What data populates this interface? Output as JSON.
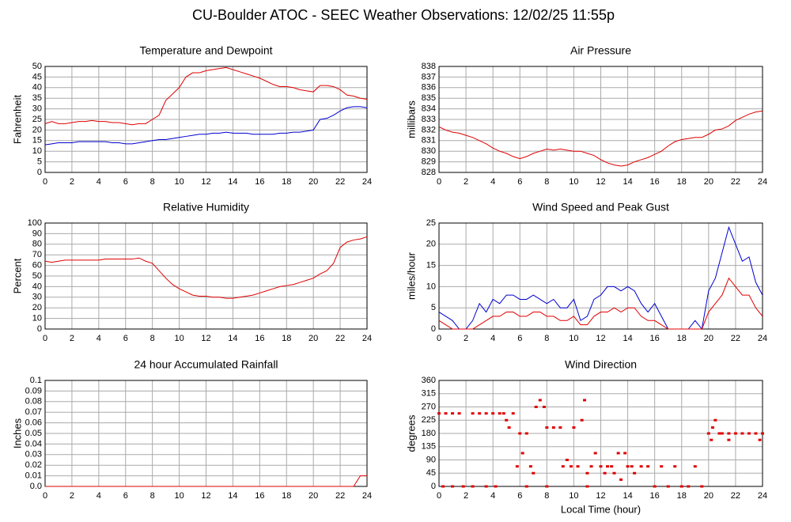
{
  "title": "CU-Boulder ATOC - SEEC Weather Observations: 12/02/25 11:55p",
  "chart_data": [
    {
      "type": "line",
      "title": "Temperature and Dewpoint",
      "ylabel": "Fahrenheit",
      "x": [
        0,
        0.5,
        1,
        1.5,
        2,
        2.5,
        3,
        3.5,
        4,
        4.5,
        5,
        5.5,
        6,
        6.5,
        7,
        7.5,
        8,
        8.5,
        9,
        9.5,
        10,
        10.5,
        11,
        11.5,
        12,
        12.5,
        13,
        13.5,
        14,
        14.5,
        15,
        15.5,
        16,
        16.5,
        17,
        17.5,
        18,
        18.5,
        19,
        19.5,
        20,
        20.5,
        21,
        21.5,
        22,
        22.5,
        23,
        23.5,
        24
      ],
      "series": [
        {
          "color": "#e00000",
          "values": [
            23,
            24,
            23,
            23,
            23.5,
            24,
            24,
            24.5,
            24,
            24,
            23.5,
            23.5,
            23,
            22.5,
            23,
            23,
            25,
            27,
            34,
            37,
            40,
            45,
            47,
            47,
            48,
            48.5,
            49,
            49.5,
            48.5,
            47.5,
            46.5,
            45.5,
            44.5,
            43,
            41.5,
            40.5,
            40.5,
            40,
            39,
            38.5,
            38,
            41,
            41,
            40.5,
            39,
            36.5,
            36,
            35,
            34.5
          ]
        },
        {
          "color": "#0000d0",
          "values": [
            13,
            13.5,
            14,
            14,
            14,
            14.5,
            14.5,
            14.5,
            14.5,
            14.5,
            14,
            14,
            13.5,
            13.5,
            14,
            14.5,
            15,
            15.5,
            15.5,
            16,
            16.5,
            17,
            17.5,
            18,
            18,
            18.5,
            18.5,
            19,
            18.5,
            18.5,
            18.5,
            18,
            18,
            18,
            18,
            18.5,
            18.5,
            19,
            19,
            19.5,
            20,
            25,
            25.5,
            27,
            29,
            30.5,
            31,
            31,
            30.5
          ]
        }
      ],
      "xlim": [
        0,
        24
      ],
      "xticks": [
        0,
        2,
        4,
        6,
        8,
        10,
        12,
        14,
        16,
        18,
        20,
        22,
        24
      ],
      "ylim": [
        0,
        50
      ],
      "yticks": [
        0,
        5,
        10,
        15,
        20,
        25,
        30,
        35,
        40,
        45,
        50
      ],
      "grid": true
    },
    {
      "type": "line",
      "title": "Air Pressure",
      "ylabel": "millibars",
      "x": [
        0,
        0.5,
        1,
        1.5,
        2,
        2.5,
        3,
        3.5,
        4,
        4.5,
        5,
        5.5,
        6,
        6.5,
        7,
        7.5,
        8,
        8.5,
        9,
        9.5,
        10,
        10.5,
        11,
        11.5,
        12,
        12.5,
        13,
        13.5,
        14,
        14.5,
        15,
        15.5,
        16,
        16.5,
        17,
        17.5,
        18,
        18.5,
        19,
        19.5,
        20,
        20.5,
        21,
        21.5,
        22,
        22.5,
        23,
        23.5,
        24
      ],
      "series": [
        {
          "color": "#e00000",
          "values": [
            832.3,
            832,
            831.8,
            831.7,
            831.5,
            831.3,
            831,
            830.7,
            830.3,
            830,
            829.8,
            829.5,
            829.3,
            829.5,
            829.8,
            830,
            830.2,
            830.1,
            830.2,
            830.1,
            830,
            830,
            829.8,
            829.6,
            829.2,
            828.9,
            828.7,
            828.6,
            828.7,
            829,
            829.2,
            829.4,
            829.7,
            830,
            830.5,
            830.9,
            831.1,
            831.2,
            831.3,
            831.3,
            831.6,
            832,
            832.1,
            832.4,
            832.9,
            833.2,
            833.5,
            833.7,
            833.8
          ]
        }
      ],
      "xlim": [
        0,
        24
      ],
      "xticks": [
        0,
        2,
        4,
        6,
        8,
        10,
        12,
        14,
        16,
        18,
        20,
        22,
        24
      ],
      "ylim": [
        828,
        838
      ],
      "yticks": [
        828,
        829,
        830,
        831,
        832,
        833,
        834,
        835,
        836,
        837,
        838
      ],
      "grid": true
    },
    {
      "type": "line",
      "title": "Relative Humidity",
      "ylabel": "Percent",
      "x": [
        0,
        0.5,
        1,
        1.5,
        2,
        2.5,
        3,
        3.5,
        4,
        4.5,
        5,
        5.5,
        6,
        6.5,
        7,
        7.5,
        8,
        8.5,
        9,
        9.5,
        10,
        10.5,
        11,
        11.5,
        12,
        12.5,
        13,
        13.5,
        14,
        14.5,
        15,
        15.5,
        16,
        16.5,
        17,
        17.5,
        18,
        18.5,
        19,
        19.5,
        20,
        20.5,
        21,
        21.5,
        22,
        22.5,
        23,
        23.5,
        24
      ],
      "series": [
        {
          "color": "#e00000",
          "values": [
            64,
            63,
            64,
            65,
            65,
            65,
            65,
            65,
            65,
            66,
            66,
            66,
            66,
            66,
            67,
            64,
            62,
            55,
            48,
            42,
            38,
            35,
            32,
            31,
            31,
            30,
            30,
            29,
            29,
            30,
            31,
            32,
            34,
            36,
            38,
            40,
            41,
            42,
            44,
            46,
            48,
            52,
            55,
            62,
            77,
            82,
            84,
            85,
            87
          ]
        }
      ],
      "xlim": [
        0,
        24
      ],
      "xticks": [
        0,
        2,
        4,
        6,
        8,
        10,
        12,
        14,
        16,
        18,
        20,
        22,
        24
      ],
      "ylim": [
        0,
        100
      ],
      "yticks": [
        0,
        10,
        20,
        30,
        40,
        50,
        60,
        70,
        80,
        90,
        100
      ],
      "grid": true
    },
    {
      "type": "line",
      "title": "Wind Speed and Peak Gust",
      "ylabel": "miles/hour",
      "x": [
        0,
        0.5,
        1,
        1.5,
        2,
        2.5,
        3,
        3.5,
        4,
        4.5,
        5,
        5.5,
        6,
        6.5,
        7,
        7.5,
        8,
        8.5,
        9,
        9.5,
        10,
        10.5,
        11,
        11.5,
        12,
        12.5,
        13,
        13.5,
        14,
        14.5,
        15,
        15.5,
        16,
        16.5,
        17,
        17.5,
        18,
        18.5,
        19,
        19.5,
        20,
        20.5,
        21,
        21.5,
        22,
        22.5,
        23,
        23.5,
        24
      ],
      "series": [
        {
          "color": "#0000d0",
          "values": [
            4,
            3,
            2,
            0,
            0,
            2,
            6,
            4,
            7,
            6,
            8,
            8,
            7,
            7,
            8,
            7,
            6,
            7,
            5,
            5,
            7,
            2,
            3,
            7,
            8,
            10,
            10,
            9,
            10,
            9,
            6,
            4,
            6,
            3,
            0,
            0,
            0,
            0,
            2,
            0,
            9,
            12,
            18,
            24,
            20,
            16,
            17,
            11,
            8
          ]
        },
        {
          "color": "#e00000",
          "values": [
            2,
            1,
            0,
            0,
            0,
            0,
            1,
            2,
            3,
            3,
            4,
            4,
            3,
            3,
            4,
            4,
            3,
            3,
            2,
            2,
            3,
            1,
            1,
            3,
            4,
            4,
            5,
            4,
            5,
            5,
            3,
            2,
            2,
            1,
            0,
            0,
            0,
            0,
            0,
            0,
            4,
            6,
            8,
            12,
            10,
            8,
            8,
            5,
            3
          ]
        }
      ],
      "xlim": [
        0,
        24
      ],
      "xticks": [
        0,
        2,
        4,
        6,
        8,
        10,
        12,
        14,
        16,
        18,
        20,
        22,
        24
      ],
      "ylim": [
        0,
        25
      ],
      "yticks": [
        0,
        5,
        10,
        15,
        20,
        25
      ],
      "grid": true
    },
    {
      "type": "line",
      "title": "24 hour Accumulated Rainfall",
      "ylabel": "Inches",
      "x": [
        0,
        0.5,
        1,
        1.5,
        2,
        2.5,
        3,
        3.5,
        4,
        4.5,
        5,
        5.5,
        6,
        6.5,
        7,
        7.5,
        8,
        8.5,
        9,
        9.5,
        10,
        10.5,
        11,
        11.5,
        12,
        12.5,
        13,
        13.5,
        14,
        14.5,
        15,
        15.5,
        16,
        16.5,
        17,
        17.5,
        18,
        18.5,
        19,
        19.5,
        20,
        20.5,
        21,
        21.5,
        22,
        22.5,
        23,
        23.5,
        24
      ],
      "series": [
        {
          "color": "#e00000",
          "values": [
            0,
            0,
            0,
            0,
            0,
            0,
            0,
            0,
            0,
            0,
            0,
            0,
            0,
            0,
            0,
            0,
            0,
            0,
            0,
            0,
            0,
            0,
            0,
            0,
            0,
            0,
            0,
            0,
            0,
            0,
            0,
            0,
            0,
            0,
            0,
            0,
            0,
            0,
            0,
            0,
            0,
            0,
            0,
            0,
            0,
            0,
            0,
            0.01,
            0.01
          ]
        }
      ],
      "xlim": [
        0,
        24
      ],
      "xticks": [
        0,
        2,
        4,
        6,
        8,
        10,
        12,
        14,
        16,
        18,
        20,
        22,
        24
      ],
      "ylim": [
        0,
        0.1
      ],
      "yticks": [
        {
          "value": 0,
          "label": "0.0"
        },
        0.01,
        0.02,
        0.03,
        0.04,
        0.05,
        0.06,
        0.07,
        0.08,
        0.09,
        0.1
      ],
      "grid": true
    },
    {
      "type": "scatter",
      "title": "Wind Direction",
      "ylabel": "degrees",
      "xlabel": "Local Time (hour)",
      "x": [
        0,
        0.5,
        1,
        1.5,
        0.3,
        1,
        1.8,
        2.5,
        3,
        3.5,
        4,
        4.5,
        2.5,
        3.5,
        4.2,
        4.8,
        5,
        5.2,
        5.5,
        5.8,
        6,
        6.2,
        6.5,
        6.8,
        7,
        7.2,
        7.5,
        7.8,
        8,
        8.5,
        9,
        9.2,
        9.5,
        9.8,
        10,
        10.3,
        10.6,
        10.8,
        11,
        11.3,
        11.6,
        12,
        12.3,
        12.5,
        12.8,
        13,
        13.3,
        13.5,
        13.8,
        14,
        14.3,
        14.5,
        15,
        15.5,
        16,
        16.5,
        17,
        17.5,
        18,
        18.5,
        19,
        19.5,
        20,
        20.3,
        20.5,
        20.8,
        21,
        21.5,
        22,
        22.5,
        23,
        23.5,
        24,
        20.2,
        21.5,
        23.8,
        6.5,
        8,
        11
      ],
      "values": [
        248,
        248,
        248,
        248,
        0,
        0,
        0,
        248,
        248,
        248,
        248,
        248,
        0,
        0,
        0,
        248,
        225,
        200,
        248,
        68,
        180,
        113,
        180,
        68,
        45,
        270,
        293,
        270,
        200,
        200,
        200,
        68,
        90,
        68,
        200,
        68,
        225,
        293,
        45,
        68,
        113,
        68,
        45,
        68,
        68,
        45,
        113,
        23,
        113,
        68,
        68,
        45,
        68,
        68,
        0,
        68,
        0,
        68,
        0,
        0,
        68,
        0,
        180,
        200,
        225,
        180,
        180,
        180,
        180,
        180,
        180,
        180,
        180,
        158,
        158,
        158,
        0,
        0,
        0
      ],
      "color": "#e00000",
      "xlim": [
        0,
        24
      ],
      "xticks": [
        0,
        2,
        4,
        6,
        8,
        10,
        12,
        14,
        16,
        18,
        20,
        22,
        24
      ],
      "ylim": [
        0,
        360
      ],
      "yticks": [
        0,
        45,
        90,
        135,
        180,
        225,
        270,
        315,
        360
      ],
      "grid": true
    }
  ]
}
